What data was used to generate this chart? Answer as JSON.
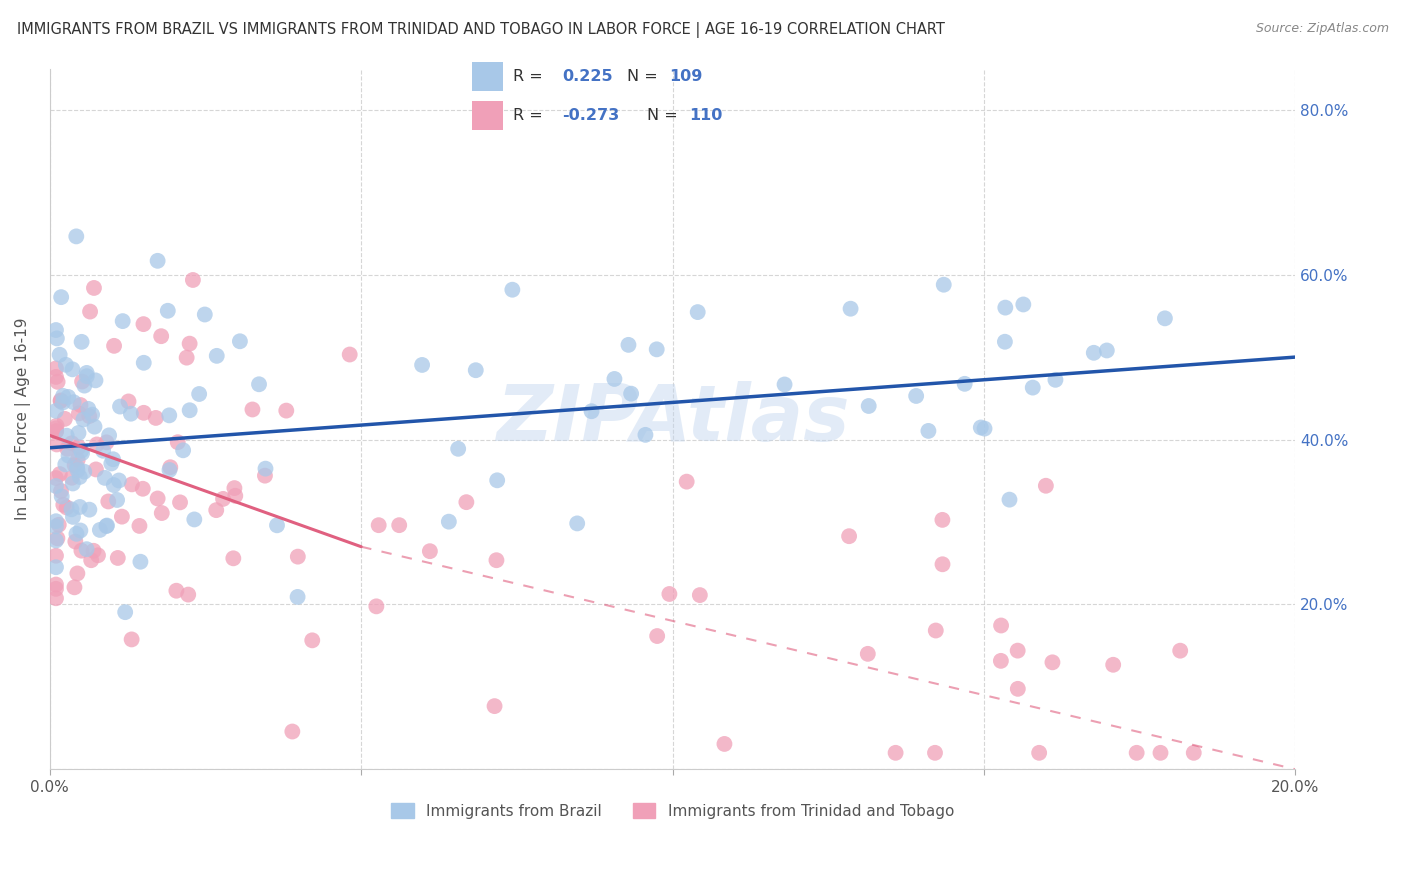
{
  "title": "IMMIGRANTS FROM BRAZIL VS IMMIGRANTS FROM TRINIDAD AND TOBAGO IN LABOR FORCE | AGE 16-19 CORRELATION CHART",
  "source": "Source: ZipAtlas.com",
  "ylabel": "In Labor Force | Age 16-19",
  "xlim": [
    0.0,
    0.2
  ],
  "ylim": [
    0.0,
    0.85
  ],
  "brazil_R": 0.225,
  "brazil_N": 109,
  "tt_R": -0.273,
  "tt_N": 110,
  "brazil_color": "#a8c8e8",
  "tt_color": "#f0a0b8",
  "brazil_line_color": "#2255aa",
  "tt_line_color": "#e06080",
  "background_color": "#ffffff",
  "grid_color": "#cccccc",
  "watermark": "ZIPAtlas"
}
